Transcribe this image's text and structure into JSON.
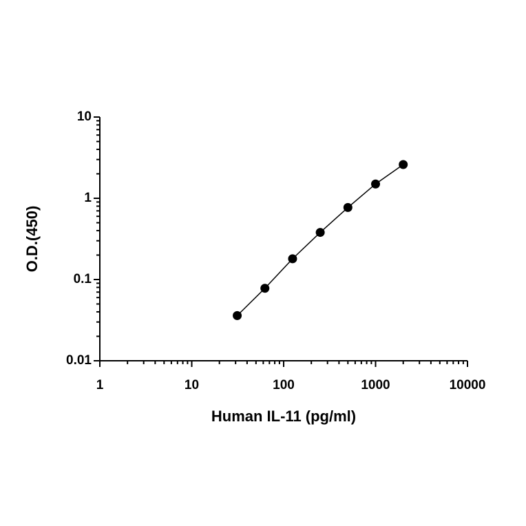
{
  "chart_data": {
    "type": "scatter",
    "x_label": "Human IL-11 (pg/ml)",
    "y_label": "O.D.(450)",
    "x": [
      31.25,
      62.5,
      125,
      250,
      500,
      1000,
      2000
    ],
    "series": [
      {
        "color": "#000000",
        "values": [
          0.036,
          0.078,
          0.18,
          0.38,
          0.77,
          1.5,
          2.6
        ]
      }
    ],
    "xscale": "log",
    "yscale": "log",
    "xlim": [
      1,
      10000
    ],
    "xticks": [
      1,
      10,
      100,
      1000,
      10000
    ],
    "ylim": [
      0.01,
      10
    ],
    "yticks": [
      0.01,
      0.1,
      1,
      10
    ],
    "minor_ticks": true,
    "connect_points": true
  }
}
